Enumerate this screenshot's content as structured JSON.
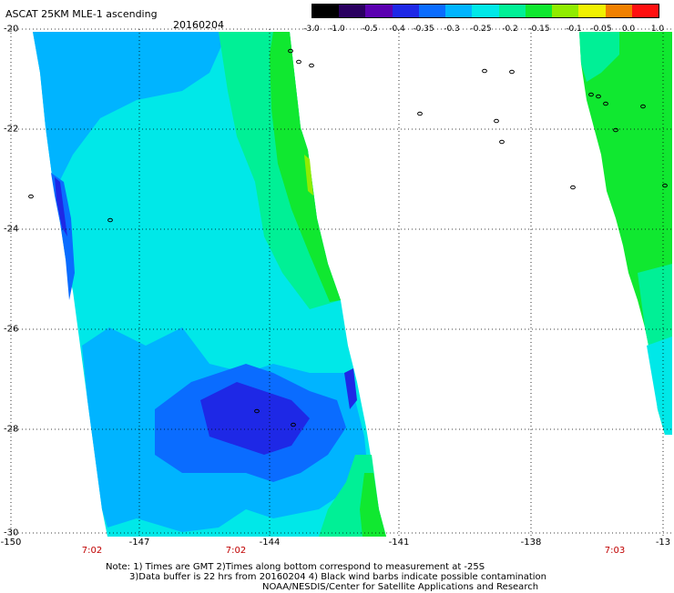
{
  "header": {
    "title": "ASCAT 25KM MLE-1 ascending",
    "date": "20160204"
  },
  "colorbar": {
    "labels": [
      "-3.0",
      "-1.0",
      "-0.5",
      "-0.4",
      "-0.35",
      "-0.3",
      "-0.25",
      "-0.2",
      "-0.15",
      "-0.1",
      "-0.05",
      "0.0",
      "1.0"
    ],
    "colors": [
      "#000000",
      "#2a0060",
      "#5a00b0",
      "#1e28e6",
      "#0a6cff",
      "#00b4ff",
      "#00e8e8",
      "#00f096",
      "#10e830",
      "#90ec00",
      "#f0f000",
      "#f08000",
      "#ff1010"
    ]
  },
  "axes": {
    "lat_labels": [
      "-20",
      "-22",
      "-24",
      "-26",
      "-28",
      "-30"
    ],
    "lon_labels": [
      "-150",
      "-147",
      "-144",
      "-141",
      "-138",
      "-13"
    ],
    "time_labels": [
      "7:02",
      "7:02",
      "7:03"
    ]
  },
  "notes": {
    "line1": "Note: 1) Times are GMT 2)Times along bottom correspond to measurement at -25S",
    "line2": "3)Data buffer is 22 hrs from 20160204 4) Black wind barbs indicate possible contamination",
    "line3": "NOAA/NESDIS/Center for Satellite Applications and Research"
  },
  "colors": {
    "background": "#ffffff",
    "grid": "#000000",
    "time_label": "#c00000"
  }
}
